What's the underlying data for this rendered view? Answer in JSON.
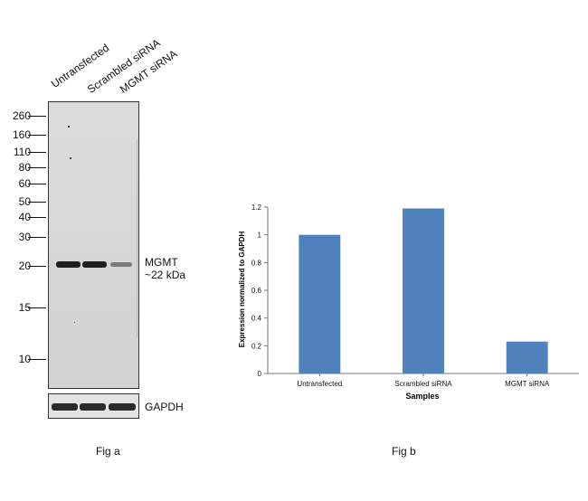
{
  "figure_a": {
    "lanes": [
      "Untransfected",
      "Scrambled siRNA",
      "MGMT  siRNA"
    ],
    "markers": [
      "260",
      "160",
      "110",
      "80",
      "60",
      "50",
      "40",
      "30",
      "20",
      "15",
      "10"
    ],
    "band_label_line1": "MGMT",
    "band_label_line2": "~22 kDa",
    "control_label": "GAPDH",
    "caption": "Fig a"
  },
  "figure_b": {
    "caption": "Fig b"
  },
  "chart_data": {
    "type": "bar",
    "categories": [
      "Untransfected",
      "Scrambled siRNA",
      "MGMT siRNA"
    ],
    "values": [
      1.0,
      1.19,
      0.23
    ],
    "xlabel": "Samples",
    "ylabel": "Expression normalized to GAPDH",
    "ylim": [
      0,
      1.2
    ],
    "yticks": [
      0,
      0.2,
      0.4,
      0.6,
      0.8,
      1,
      1.2
    ],
    "bar_color": "#4f81bd",
    "grid": false
  }
}
